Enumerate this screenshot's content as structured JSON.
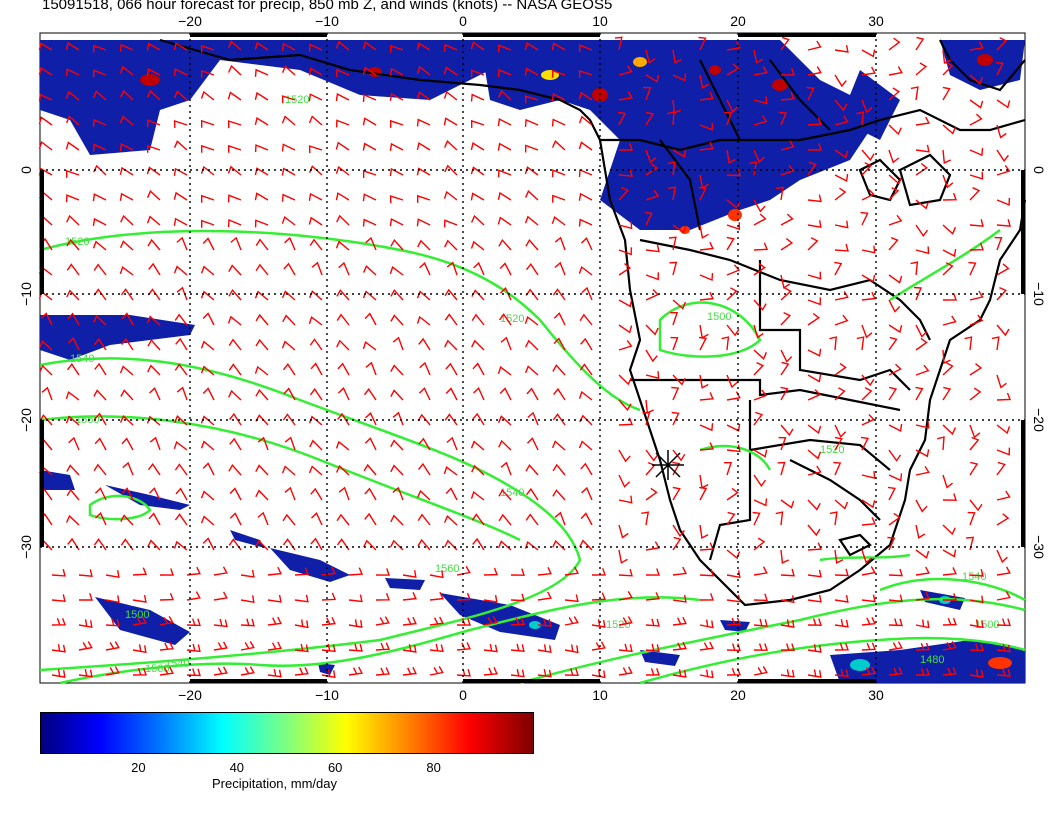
{
  "title": "15091518, 066 hour forecast for precip, 850 mb Z, and winds (knots) -- NASA GEOS5",
  "map": {
    "lon_range": [
      -30,
      40
    ],
    "lat_range": [
      -40,
      10
    ],
    "lon_ticks": [
      "−20",
      "−10",
      "0",
      "10",
      "20",
      "30"
    ],
    "lat_ticks_left": [
      "0",
      "−10",
      "−20",
      "−30"
    ],
    "lat_ticks_right": [
      "0",
      "−10",
      "−20",
      "−30"
    ],
    "contour_labels": [
      "1520",
      "1520",
      "1540",
      "1560",
      "1560",
      "1540",
      "1520",
      "1500",
      "1540",
      "1500",
      "1520",
      "1560",
      "1520",
      "1540",
      "1500",
      "1480"
    ],
    "colors": {
      "wind": "#ff0000",
      "contour": "#33ee33",
      "coast": "#000000"
    }
  },
  "colorbar": {
    "ticks": [
      "20",
      "40",
      "60",
      "80"
    ],
    "tick_values": [
      20,
      40,
      60,
      80
    ],
    "range": [
      0,
      100
    ],
    "label": "Precipitation, mm/day"
  }
}
